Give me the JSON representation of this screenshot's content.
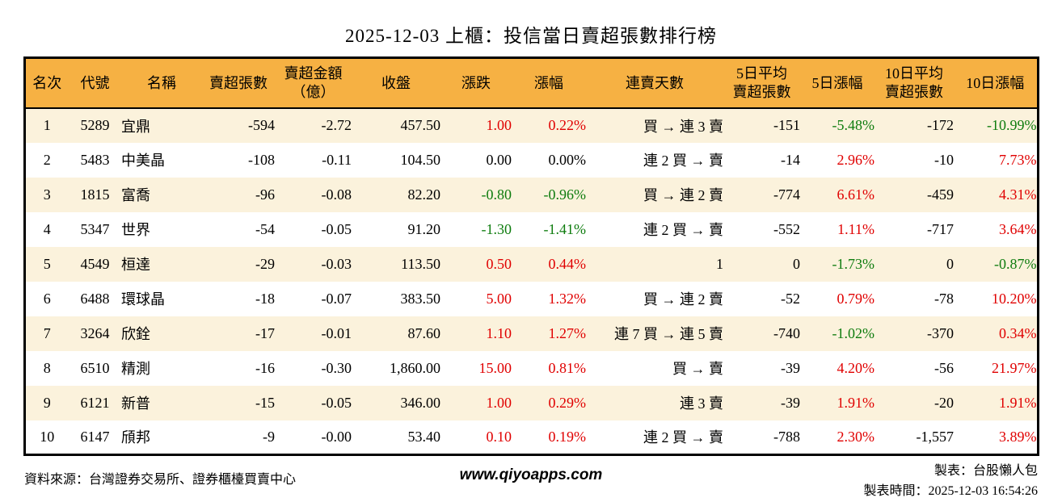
{
  "title": "2025-12-03 上櫃：投信當日賣超張數排行榜",
  "colors": {
    "header_bg": "#F6B143",
    "stripe_row_bg": "#FBF2DC",
    "up_red": "#E00000",
    "down_green": "#0E7C0E",
    "border": "#000000"
  },
  "chart_data": {
    "type": "table",
    "title": "2025-12-03 上櫃：投信當日賣超張數排行榜",
    "columns": [
      "名次",
      "代號",
      "名稱",
      "賣超張數",
      "賣超金額\n（億）",
      "收盤",
      "漲跌",
      "漲幅",
      "連賣天數",
      "5日平均\n賣超張數",
      "5日漲幅",
      "10日平均\n賣超張數",
      "10日漲幅"
    ],
    "rows": [
      {
        "cells": [
          "1",
          "5289",
          "宜鼎",
          "-594",
          "-2.72",
          "457.50",
          "1.00",
          "0.22%",
          "買 → 連 3 賣",
          "-151",
          "-5.48%",
          "-172",
          "-10.99%"
        ],
        "chg": "up",
        "d5": "down",
        "d10": "down"
      },
      {
        "cells": [
          "2",
          "5483",
          "中美晶",
          "-108",
          "-0.11",
          "104.50",
          "0.00",
          "0.00%",
          "連 2 買 → 賣",
          "-14",
          "2.96%",
          "-10",
          "7.73%"
        ],
        "chg": "flat",
        "d5": "up",
        "d10": "up"
      },
      {
        "cells": [
          "3",
          "1815",
          "富喬",
          "-96",
          "-0.08",
          "82.20",
          "-0.80",
          "-0.96%",
          "買 → 連 2 賣",
          "-774",
          "6.61%",
          "-459",
          "4.31%"
        ],
        "chg": "down",
        "d5": "up",
        "d10": "up"
      },
      {
        "cells": [
          "4",
          "5347",
          "世界",
          "-54",
          "-0.05",
          "91.20",
          "-1.30",
          "-1.41%",
          "連 2 買 → 賣",
          "-552",
          "1.11%",
          "-717",
          "3.64%"
        ],
        "chg": "down",
        "d5": "up",
        "d10": "up"
      },
      {
        "cells": [
          "5",
          "4549",
          "桓達",
          "-29",
          "-0.03",
          "113.50",
          "0.50",
          "0.44%",
          "1",
          "0",
          "-1.73%",
          "0",
          "-0.87%"
        ],
        "chg": "up",
        "d5": "down",
        "d10": "down"
      },
      {
        "cells": [
          "6",
          "6488",
          "環球晶",
          "-18",
          "-0.07",
          "383.50",
          "5.00",
          "1.32%",
          "買 → 連 2 賣",
          "-52",
          "0.79%",
          "-78",
          "10.20%"
        ],
        "chg": "up",
        "d5": "up",
        "d10": "up"
      },
      {
        "cells": [
          "7",
          "3264",
          "欣銓",
          "-17",
          "-0.01",
          "87.60",
          "1.10",
          "1.27%",
          "連 7 買 → 連 5 賣",
          "-740",
          "-1.02%",
          "-370",
          "0.34%"
        ],
        "chg": "up",
        "d5": "down",
        "d10": "up"
      },
      {
        "cells": [
          "8",
          "6510",
          "精測",
          "-16",
          "-0.30",
          "1,860.00",
          "15.00",
          "0.81%",
          "買 → 賣",
          "-39",
          "4.20%",
          "-56",
          "21.97%"
        ],
        "chg": "up",
        "d5": "up",
        "d10": "up"
      },
      {
        "cells": [
          "9",
          "6121",
          "新普",
          "-15",
          "-0.05",
          "346.00",
          "1.00",
          "0.29%",
          "連 3 賣",
          "-39",
          "1.91%",
          "-20",
          "1.91%"
        ],
        "chg": "up",
        "d5": "up",
        "d10": "up"
      },
      {
        "cells": [
          "10",
          "6147",
          "頎邦",
          "-9",
          "-0.00",
          "53.40",
          "0.10",
          "0.19%",
          "連 2 買 → 賣",
          "-788",
          "2.30%",
          "-1,557",
          "3.89%"
        ],
        "chg": "up",
        "d5": "up",
        "d10": "up"
      }
    ]
  },
  "footer": {
    "source": "資料來源：台灣證券交易所、證券櫃檯買賣中心",
    "website": "www.qiyoapps.com",
    "maker": "製表：台股懶人包",
    "generated": "製表時間：2025-12-03 16:54:26"
  }
}
